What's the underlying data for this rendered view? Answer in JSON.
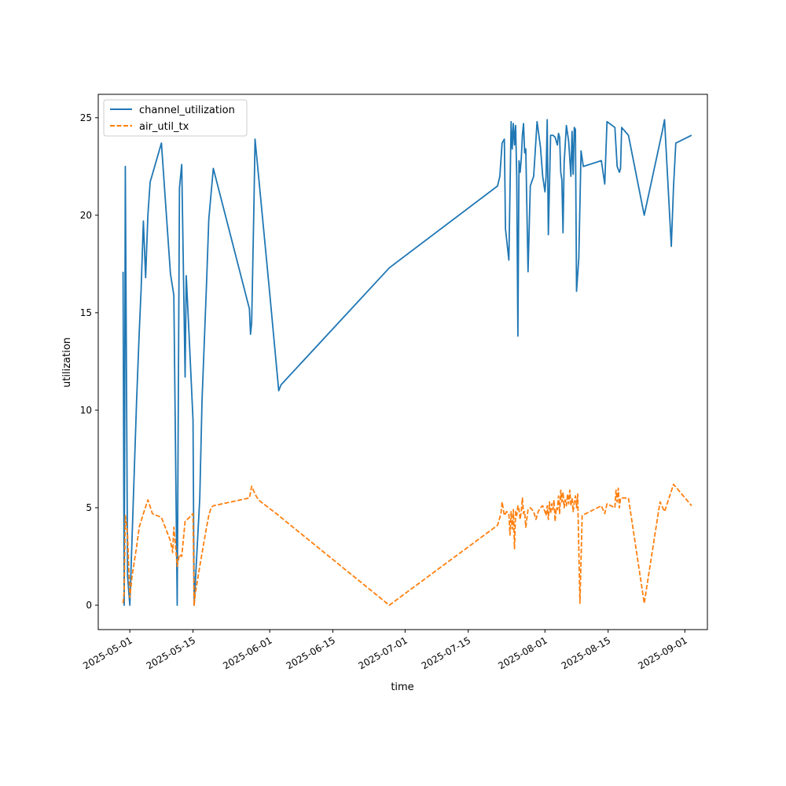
{
  "chart_data": {
    "type": "line",
    "title": "",
    "xlabel": "time",
    "ylabel": "utilization",
    "x_axis": "date",
    "xlim": [
      "2025-04-24",
      "2025-09-06"
    ],
    "ylim": [
      -1.25,
      26.2
    ],
    "xticks": [
      "2025-05-01",
      "2025-05-15",
      "2025-06-01",
      "2025-06-15",
      "2025-07-01",
      "2025-07-15",
      "2025-08-01",
      "2025-08-15",
      "2025-09-01"
    ],
    "yticks": [
      0,
      5,
      10,
      15,
      20,
      25
    ],
    "grid": false,
    "legend": "upper-left",
    "series": [
      {
        "name": "channel_utilization",
        "color": "#1f77b4",
        "style": "solid",
        "points": [
          [
            "2025-04-29T12:00",
            17.1
          ],
          [
            "2025-04-29T18:00",
            0.0
          ],
          [
            "2025-04-30T00:00",
            22.5
          ],
          [
            "2025-04-30T12:00",
            1.5
          ],
          [
            "2025-05-01T00:00",
            0.0
          ],
          [
            "2025-05-01T12:00",
            3.5
          ],
          [
            "2025-05-02T12:00",
            10.5
          ],
          [
            "2025-05-03T02:00",
            14.0
          ],
          [
            "2025-05-03T12:00",
            16.2
          ],
          [
            "2025-05-04T00:00",
            19.7
          ],
          [
            "2025-05-04T12:00",
            16.8
          ],
          [
            "2025-05-05T00:00",
            20.0
          ],
          [
            "2025-05-05T12:00",
            21.7
          ],
          [
            "2025-05-08T00:00",
            23.7
          ],
          [
            "2025-05-10T00:00",
            17.0
          ],
          [
            "2025-05-10T18:00",
            15.9
          ],
          [
            "2025-05-11T12:00",
            0.0
          ],
          [
            "2025-05-12T00:00",
            21.4
          ],
          [
            "2025-05-12T12:00",
            22.6
          ],
          [
            "2025-05-13T06:00",
            11.7
          ],
          [
            "2025-05-13T12:00",
            16.9
          ],
          [
            "2025-05-14T00:00",
            14.5
          ],
          [
            "2025-05-15T00:00",
            9.5
          ],
          [
            "2025-05-15T06:00",
            0.0
          ],
          [
            "2025-05-16T12:00",
            5.5
          ],
          [
            "2025-05-17T00:00",
            10.5
          ],
          [
            "2025-05-18T00:00",
            16.5
          ],
          [
            "2025-05-18T12:00",
            19.8
          ],
          [
            "2025-05-19T12:00",
            22.4
          ],
          [
            "2025-05-27T12:00",
            15.2
          ],
          [
            "2025-05-27T18:00",
            13.9
          ],
          [
            "2025-05-28T00:00",
            14.5
          ],
          [
            "2025-05-28T12:00",
            20.5
          ],
          [
            "2025-05-28T18:00",
            23.9
          ],
          [
            "2025-06-01T00:00",
            16.0
          ],
          [
            "2025-06-03T00:00",
            11.0
          ],
          [
            "2025-06-03T12:00",
            11.3
          ],
          [
            "2025-06-27T12:00",
            17.3
          ],
          [
            "2025-07-21T12:00",
            21.5
          ],
          [
            "2025-07-22T00:00",
            22.0
          ],
          [
            "2025-07-22T12:00",
            23.7
          ],
          [
            "2025-07-23T00:00",
            23.9
          ],
          [
            "2025-07-23T06:00",
            19.3
          ],
          [
            "2025-07-24T00:00",
            17.7
          ],
          [
            "2025-07-24T12:00",
            24.8
          ],
          [
            "2025-07-24T18:00",
            23.4
          ],
          [
            "2025-07-25T00:00",
            24.7
          ],
          [
            "2025-07-25T06:00",
            23.6
          ],
          [
            "2025-07-25T12:00",
            24.6
          ],
          [
            "2025-07-25T18:00",
            21.9
          ],
          [
            "2025-07-26T00:00",
            13.8
          ],
          [
            "2025-07-26T06:00",
            22.8
          ],
          [
            "2025-07-26T12:00",
            22.2
          ],
          [
            "2025-07-26T18:00",
            22.9
          ],
          [
            "2025-07-27T00:00",
            24.1
          ],
          [
            "2025-07-27T06:00",
            24.7
          ],
          [
            "2025-07-27T12:00",
            23.2
          ],
          [
            "2025-07-27T18:00",
            23.4
          ],
          [
            "2025-07-28T06:00",
            17.1
          ],
          [
            "2025-07-28T18:00",
            21.5
          ],
          [
            "2025-07-29T12:00",
            22.0
          ],
          [
            "2025-07-30T06:00",
            24.8
          ],
          [
            "2025-07-31T00:00",
            23.5
          ],
          [
            "2025-07-31T12:00",
            22.0
          ],
          [
            "2025-08-01T00:00",
            21.2
          ],
          [
            "2025-08-01T06:00",
            22.0
          ],
          [
            "2025-08-01T12:00",
            24.9
          ],
          [
            "2025-08-01T18:00",
            19.0
          ],
          [
            "2025-08-02T06:00",
            24.1
          ],
          [
            "2025-08-02T18:00",
            24.1
          ],
          [
            "2025-08-03T06:00",
            24.0
          ],
          [
            "2025-08-03T18:00",
            23.6
          ],
          [
            "2025-08-04T00:00",
            24.2
          ],
          [
            "2025-08-04T06:00",
            24.0
          ],
          [
            "2025-08-04T12:00",
            22.2
          ],
          [
            "2025-08-04T18:00",
            21.8
          ],
          [
            "2025-08-05T00:00",
            19.1
          ],
          [
            "2025-08-05T06:00",
            22.7
          ],
          [
            "2025-08-05T18:00",
            24.6
          ],
          [
            "2025-08-06T00:00",
            24.2
          ],
          [
            "2025-08-06T06:00",
            23.8
          ],
          [
            "2025-08-06T18:00",
            22.0
          ],
          [
            "2025-08-07T00:00",
            24.3
          ],
          [
            "2025-08-07T06:00",
            22.1
          ],
          [
            "2025-08-07T12:00",
            24.5
          ],
          [
            "2025-08-07T18:00",
            24.4
          ],
          [
            "2025-08-08T00:00",
            16.1
          ],
          [
            "2025-08-08T12:00",
            17.8
          ],
          [
            "2025-08-09T00:00",
            23.3
          ],
          [
            "2025-08-09T12:00",
            22.5
          ],
          [
            "2025-08-13T12:00",
            22.8
          ],
          [
            "2025-08-14T06:00",
            21.6
          ],
          [
            "2025-08-14T18:00",
            24.8
          ],
          [
            "2025-08-16T12:00",
            24.5
          ],
          [
            "2025-08-17T00:00",
            22.5
          ],
          [
            "2025-08-17T12:00",
            22.2
          ],
          [
            "2025-08-17T18:00",
            22.4
          ],
          [
            "2025-08-18T00:00",
            24.5
          ],
          [
            "2025-08-19T12:00",
            24.1
          ],
          [
            "2025-08-23T00:00",
            20.0
          ],
          [
            "2025-08-27T00:00",
            24.3
          ],
          [
            "2025-08-27T12:00",
            24.9
          ],
          [
            "2025-08-29T00:00",
            18.4
          ],
          [
            "2025-08-29T12:00",
            21.5
          ],
          [
            "2025-08-30T00:00",
            23.7
          ],
          [
            "2025-09-02T12:00",
            24.1
          ]
        ]
      },
      {
        "name": "air_util_tx",
        "color": "#ff7f0e",
        "style": "dashed",
        "points": [
          [
            "2025-04-29T12:00",
            0.1
          ],
          [
            "2025-04-29T18:00",
            0.7
          ],
          [
            "2025-04-30T00:00",
            4.6
          ],
          [
            "2025-04-30T12:00",
            3.6
          ],
          [
            "2025-05-01T00:00",
            0.4
          ],
          [
            "2025-05-01T12:00",
            1.5
          ],
          [
            "2025-05-02T12:00",
            3.0
          ],
          [
            "2025-05-03T02:00",
            4.0
          ],
          [
            "2025-05-04T00:00",
            4.7
          ],
          [
            "2025-05-05T00:00",
            5.4
          ],
          [
            "2025-05-06T00:00",
            4.7
          ],
          [
            "2025-05-08T00:00",
            4.5
          ],
          [
            "2025-05-10T00:00",
            3.3
          ],
          [
            "2025-05-10T12:00",
            2.7
          ],
          [
            "2025-05-10T18:00",
            4.0
          ],
          [
            "2025-05-11T06:00",
            2.7
          ],
          [
            "2025-05-11T12:00",
            2.0
          ],
          [
            "2025-05-12T00:00",
            2.6
          ],
          [
            "2025-05-12T12:00",
            2.5
          ],
          [
            "2025-05-13T06:00",
            4.3
          ],
          [
            "2025-05-13T18:00",
            4.4
          ],
          [
            "2025-05-15T00:00",
            4.7
          ],
          [
            "2025-05-15T06:00",
            0.0
          ],
          [
            "2025-05-15T12:00",
            0.6
          ],
          [
            "2025-05-16T12:00",
            2.0
          ],
          [
            "2025-05-18T00:00",
            4.0
          ],
          [
            "2025-05-18T12:00",
            4.6
          ],
          [
            "2025-05-19T00:00",
            5.0
          ],
          [
            "2025-05-19T12:00",
            5.1
          ],
          [
            "2025-05-27T12:00",
            5.5
          ],
          [
            "2025-05-28T00:00",
            6.1
          ],
          [
            "2025-05-28T18:00",
            5.7
          ],
          [
            "2025-05-29T12:00",
            5.4
          ],
          [
            "2025-06-03T00:00",
            4.6
          ],
          [
            "2025-06-03T12:00",
            4.5
          ],
          [
            "2025-06-27T12:00",
            0.0
          ],
          [
            "2025-07-21T12:00",
            4.1
          ],
          [
            "2025-07-22T06:00",
            4.7
          ],
          [
            "2025-07-22T12:00",
            5.3
          ],
          [
            "2025-07-23T00:00",
            4.6
          ],
          [
            "2025-07-23T12:00",
            4.8
          ],
          [
            "2025-07-24T00:00",
            4.7
          ],
          [
            "2025-07-24T06:00",
            3.6
          ],
          [
            "2025-07-24T12:00",
            4.8
          ],
          [
            "2025-07-24T18:00",
            3.9
          ],
          [
            "2025-07-25T00:00",
            4.9
          ],
          [
            "2025-07-25T06:00",
            2.9
          ],
          [
            "2025-07-25T12:00",
            4.8
          ],
          [
            "2025-07-25T18:00",
            4.6
          ],
          [
            "2025-07-26T00:00",
            5.1
          ],
          [
            "2025-07-26T06:00",
            4.9
          ],
          [
            "2025-07-26T12:00",
            4.4
          ],
          [
            "2025-07-26T18:00",
            4.8
          ],
          [
            "2025-07-27T00:00",
            5.5
          ],
          [
            "2025-07-27T06:00",
            4.7
          ],
          [
            "2025-07-27T12:00",
            4.8
          ],
          [
            "2025-07-27T18:00",
            4.0
          ],
          [
            "2025-07-28T06:00",
            4.9
          ],
          [
            "2025-07-28T18:00",
            5.0
          ],
          [
            "2025-07-29T12:00",
            4.8
          ],
          [
            "2025-07-30T00:00",
            4.4
          ],
          [
            "2025-07-30T12:00",
            4.8
          ],
          [
            "2025-07-31T00:00",
            5.0
          ],
          [
            "2025-07-31T12:00",
            5.1
          ],
          [
            "2025-08-01T00:00",
            4.8
          ],
          [
            "2025-08-01T06:00",
            4.6
          ],
          [
            "2025-08-01T12:00",
            5.1
          ],
          [
            "2025-08-01T18:00",
            4.4
          ],
          [
            "2025-08-02T00:00",
            5.3
          ],
          [
            "2025-08-02T06:00",
            4.7
          ],
          [
            "2025-08-02T12:00",
            5.2
          ],
          [
            "2025-08-02T18:00",
            4.9
          ],
          [
            "2025-08-03T00:00",
            5.4
          ],
          [
            "2025-08-03T06:00",
            4.3
          ],
          [
            "2025-08-03T12:00",
            5.0
          ],
          [
            "2025-08-03T18:00",
            4.9
          ],
          [
            "2025-08-04T00:00",
            5.6
          ],
          [
            "2025-08-04T06:00",
            4.7
          ],
          [
            "2025-08-04T12:00",
            5.9
          ],
          [
            "2025-08-04T18:00",
            5.3
          ],
          [
            "2025-08-05T00:00",
            5.8
          ],
          [
            "2025-08-05T06:00",
            5.0
          ],
          [
            "2025-08-05T12:00",
            5.4
          ],
          [
            "2025-08-05T18:00",
            5.1
          ],
          [
            "2025-08-06T00:00",
            5.7
          ],
          [
            "2025-08-06T06:00",
            5.2
          ],
          [
            "2025-08-06T12:00",
            5.9
          ],
          [
            "2025-08-06T18:00",
            5.1
          ],
          [
            "2025-08-07T00:00",
            5.5
          ],
          [
            "2025-08-07T06:00",
            4.8
          ],
          [
            "2025-08-07T12:00",
            5.3
          ],
          [
            "2025-08-07T18:00",
            5.6
          ],
          [
            "2025-08-08T00:00",
            5.0
          ],
          [
            "2025-08-08T06:00",
            5.7
          ],
          [
            "2025-08-08T18:00",
            0.1
          ],
          [
            "2025-08-09T06:00",
            4.6
          ],
          [
            "2025-08-13T12:00",
            5.1
          ],
          [
            "2025-08-14T06:00",
            4.7
          ],
          [
            "2025-08-14T18:00",
            5.2
          ],
          [
            "2025-08-16T12:00",
            5.0
          ],
          [
            "2025-08-16T18:00",
            5.9
          ],
          [
            "2025-08-17T00:00",
            5.3
          ],
          [
            "2025-08-17T06:00",
            6.0
          ],
          [
            "2025-08-17T12:00",
            5.0
          ],
          [
            "2025-08-17T18:00",
            5.5
          ],
          [
            "2025-08-18T06:00",
            5.5
          ],
          [
            "2025-08-19T12:00",
            5.5
          ],
          [
            "2025-08-23T00:00",
            0.1
          ],
          [
            "2025-08-26T12:00",
            5.3
          ],
          [
            "2025-08-27T12:00",
            4.8
          ],
          [
            "2025-08-29T12:00",
            6.2
          ],
          [
            "2025-09-02T12:00",
            5.1
          ]
        ]
      }
    ]
  }
}
